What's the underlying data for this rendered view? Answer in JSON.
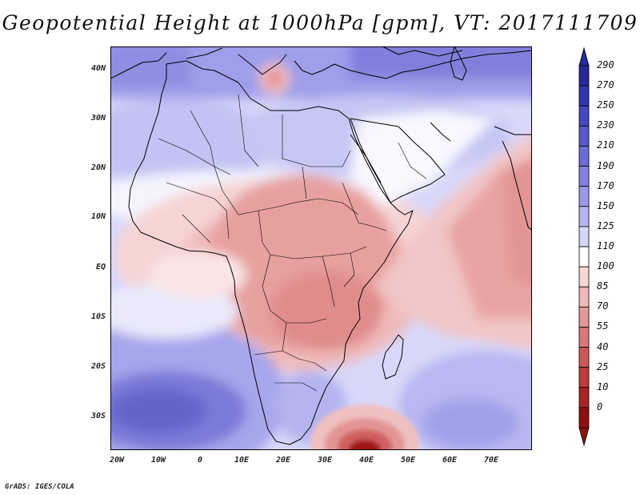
{
  "title": "Geopotential Height at 1000hPa [gpm], VT: 2017111709",
  "credit": "GrADS: IGES/COLA",
  "lat_labels": [
    "40N",
    "30N",
    "20N",
    "10N",
    "EQ",
    "10S",
    "20S",
    "30S"
  ],
  "lon_labels": [
    "20W",
    "10W",
    "0",
    "10E",
    "20E",
    "30E",
    "40E",
    "50E",
    "60E",
    "70E"
  ],
  "colorbar": {
    "labels": [
      "290",
      "270",
      "250",
      "230",
      "210",
      "190",
      "170",
      "150",
      "125",
      "110",
      "100",
      "85",
      "70",
      "55",
      "40",
      "25",
      "10",
      "0"
    ],
    "colors": [
      "#28289a",
      "#3535b0",
      "#4646c0",
      "#5858ca",
      "#6c6cd4",
      "#8282de",
      "#9a9ae8",
      "#b6b6f0",
      "#d4d4f8",
      "#ffffff",
      "#f8d6d6",
      "#f0b8b8",
      "#e49898",
      "#d87878",
      "#cc5858",
      "#bc3c3c",
      "#a82424",
      "#8e1010"
    ]
  },
  "colors": {
    "land_outline": "#000000",
    "strong_blue": "#5a5ad0",
    "strong_red": "#b02020"
  }
}
